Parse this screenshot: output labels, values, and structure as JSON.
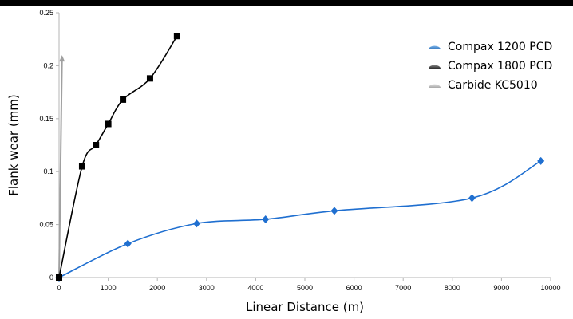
{
  "chart_data": {
    "type": "line",
    "title": "",
    "xlabel": "Linear Distance (m)",
    "ylabel": "Flank wear (mm)",
    "xlim": [
      0,
      10000
    ],
    "ylim": [
      0,
      0.25
    ],
    "x_ticks": [
      0,
      1000,
      2000,
      3000,
      4000,
      5000,
      6000,
      7000,
      8000,
      9000,
      10000
    ],
    "y_ticks": [
      0,
      0.05,
      0.1,
      0.15,
      0.2,
      0.25
    ],
    "x_tick_labels": [
      "0",
      "1000",
      "2000",
      "3000",
      "4000",
      "5000",
      "6000",
      "7000",
      "8000",
      "9000",
      "10000"
    ],
    "y_tick_labels": [
      "0",
      "0.05",
      "0.1",
      "0.15",
      "0.2",
      "0.25"
    ],
    "grid": false,
    "legend_position": "top-right",
    "series": [
      {
        "name": "Compax 1200 PCD",
        "color": "#1f6fd0",
        "marker": "diamond",
        "points": [
          [
            0,
            0
          ],
          [
            1400,
            0.032
          ],
          [
            2800,
            0.051
          ],
          [
            4200,
            0.055
          ],
          [
            5600,
            0.063
          ],
          [
            8400,
            0.075
          ],
          [
            9800,
            0.11
          ]
        ]
      },
      {
        "name": "Compax 1800 PCD",
        "color": "#000000",
        "marker": "square",
        "points": [
          [
            0,
            0
          ],
          [
            470,
            0.105
          ],
          [
            750,
            0.125
          ],
          [
            1000,
            0.145
          ],
          [
            1300,
            0.168
          ],
          [
            1850,
            0.188
          ],
          [
            2400,
            0.228
          ]
        ]
      },
      {
        "name": "Carbide KC5010",
        "color": "#a0a0a0",
        "marker": "arrow",
        "points": [
          [
            0,
            0
          ],
          [
            60,
            0.21
          ]
        ]
      }
    ]
  }
}
